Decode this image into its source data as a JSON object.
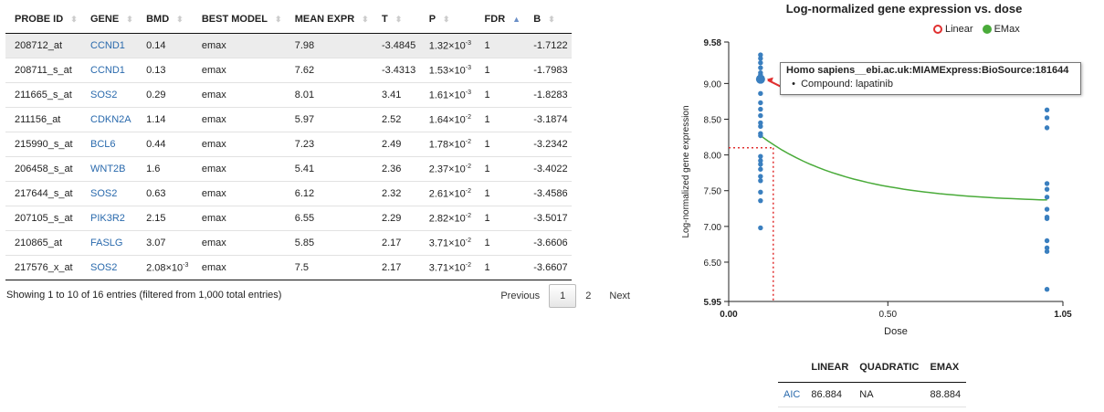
{
  "table": {
    "columns": [
      {
        "label": "PROBE ID",
        "sort": "both"
      },
      {
        "label": "GENE",
        "sort": "both"
      },
      {
        "label": "BMD",
        "sort": "both"
      },
      {
        "label": "BEST MODEL",
        "sort": "both"
      },
      {
        "label": "MEAN EXPR",
        "sort": "both"
      },
      {
        "label": "T",
        "sort": "both"
      },
      {
        "label": "P",
        "sort": "both"
      },
      {
        "label": "FDR",
        "sort": "asc"
      },
      {
        "label": "B",
        "sort": "both"
      }
    ],
    "rows": [
      {
        "probe": "208712_at",
        "gene": "CCND1",
        "bmd": "0.14",
        "model": "emax",
        "mean": "7.98",
        "t": "-3.4845",
        "p_base": "1.32×10",
        "p_exp": "-3",
        "fdr": "1",
        "b": "-1.7122"
      },
      {
        "probe": "208711_s_at",
        "gene": "CCND1",
        "bmd": "0.13",
        "model": "emax",
        "mean": "7.62",
        "t": "-3.4313",
        "p_base": "1.53×10",
        "p_exp": "-3",
        "fdr": "1",
        "b": "-1.7983"
      },
      {
        "probe": "211665_s_at",
        "gene": "SOS2",
        "bmd": "0.29",
        "model": "emax",
        "mean": "8.01",
        "t": "3.41",
        "p_base": "1.61×10",
        "p_exp": "-3",
        "fdr": "1",
        "b": "-1.8283"
      },
      {
        "probe": "211156_at",
        "gene": "CDKN2A",
        "bmd": "1.14",
        "model": "emax",
        "mean": "5.97",
        "t": "2.52",
        "p_base": "1.64×10",
        "p_exp": "-2",
        "fdr": "1",
        "b": "-3.1874"
      },
      {
        "probe": "215990_s_at",
        "gene": "BCL6",
        "bmd": "0.44",
        "model": "emax",
        "mean": "7.23",
        "t": "2.49",
        "p_base": "1.78×10",
        "p_exp": "-2",
        "fdr": "1",
        "b": "-3.2342"
      },
      {
        "probe": "206458_s_at",
        "gene": "WNT2B",
        "bmd": "1.6",
        "model": "emax",
        "mean": "5.41",
        "t": "2.36",
        "p_base": "2.37×10",
        "p_exp": "-2",
        "fdr": "1",
        "b": "-3.4022"
      },
      {
        "probe": "217644_s_at",
        "gene": "SOS2",
        "bmd": "0.63",
        "model": "emax",
        "mean": "6.12",
        "t": "2.32",
        "p_base": "2.61×10",
        "p_exp": "-2",
        "fdr": "1",
        "b": "-3.4586"
      },
      {
        "probe": "207105_s_at",
        "gene": "PIK3R2",
        "bmd": "2.15",
        "model": "emax",
        "mean": "6.55",
        "t": "2.29",
        "p_base": "2.82×10",
        "p_exp": "-2",
        "fdr": "1",
        "b": "-3.5017"
      },
      {
        "probe": "210865_at",
        "gene": "FASLG",
        "bmd": "3.07",
        "model": "emax",
        "mean": "5.85",
        "t": "2.17",
        "p_base": "3.71×10",
        "p_exp": "-2",
        "fdr": "1",
        "b": "-3.6606"
      },
      {
        "probe": "217576_x_at",
        "gene": "SOS2",
        "bmd": "2.08×10",
        "bmd_exp": "-3",
        "model": "emax",
        "mean": "7.5",
        "t": "2.17",
        "p_base": "3.71×10",
        "p_exp": "-2",
        "fdr": "1",
        "b": "-3.6607"
      }
    ]
  },
  "footer": {
    "info": "Showing 1 to 10 of 16 entries (filtered from 1,000 total entries)",
    "previous": "Previous",
    "pages": [
      "1",
      "2"
    ],
    "current_page": "1",
    "next": "Next"
  },
  "colors": {
    "accent": "#2a6aad",
    "points": "#3a7fbf",
    "emax": "#4aab3a",
    "linear": "#e03030",
    "bmd_line": "#e03030"
  },
  "chart_data": {
    "type": "scatter",
    "title": "Log-normalized gene expression vs. dose",
    "xlabel": "Dose",
    "ylabel": "Log-normalized gene expression",
    "xlim": [
      0.0,
      1.05
    ],
    "ylim": [
      5.95,
      9.58
    ],
    "x_ticks": [
      "0.00",
      "0.50",
      "1.05"
    ],
    "y_ticks": [
      "5.95",
      "6.50",
      "7.00",
      "7.50",
      "8.00",
      "8.50",
      "9.00",
      "9.58"
    ],
    "grid": false,
    "legend_placement": "top-right",
    "series": [
      {
        "name": "Linear",
        "visible": false
      },
      {
        "name": "EMax",
        "visible": true
      }
    ],
    "points": [
      {
        "x": 0.1,
        "y": 9.4
      },
      {
        "x": 0.1,
        "y": 9.35
      },
      {
        "x": 0.1,
        "y": 9.29
      },
      {
        "x": 0.1,
        "y": 9.22
      },
      {
        "x": 0.1,
        "y": 9.15
      },
      {
        "x": 0.1,
        "y": 9.12
      },
      {
        "x": 0.1,
        "y": 8.86
      },
      {
        "x": 0.1,
        "y": 8.73
      },
      {
        "x": 0.1,
        "y": 8.64
      },
      {
        "x": 0.1,
        "y": 8.55
      },
      {
        "x": 0.1,
        "y": 8.45
      },
      {
        "x": 0.1,
        "y": 8.4
      },
      {
        "x": 0.1,
        "y": 8.3
      },
      {
        "x": 0.1,
        "y": 8.27
      },
      {
        "x": 0.1,
        "y": 7.98
      },
      {
        "x": 0.1,
        "y": 7.92
      },
      {
        "x": 0.1,
        "y": 7.87
      },
      {
        "x": 0.1,
        "y": 7.8
      },
      {
        "x": 0.1,
        "y": 7.7
      },
      {
        "x": 0.1,
        "y": 7.64
      },
      {
        "x": 0.1,
        "y": 7.48
      },
      {
        "x": 0.1,
        "y": 7.36
      },
      {
        "x": 0.1,
        "y": 6.98
      },
      {
        "x": 1.0,
        "y": 8.63
      },
      {
        "x": 1.0,
        "y": 8.52
      },
      {
        "x": 1.0,
        "y": 8.38
      },
      {
        "x": 1.0,
        "y": 7.6
      },
      {
        "x": 1.0,
        "y": 7.52
      },
      {
        "x": 1.0,
        "y": 7.41
      },
      {
        "x": 1.0,
        "y": 7.24
      },
      {
        "x": 1.0,
        "y": 7.13
      },
      {
        "x": 1.0,
        "y": 7.11
      },
      {
        "x": 1.0,
        "y": 6.8
      },
      {
        "x": 1.0,
        "y": 6.7
      },
      {
        "x": 1.0,
        "y": 6.65
      },
      {
        "x": 1.0,
        "y": 6.12
      }
    ],
    "highlight_point": {
      "x": 0.1,
      "y": 9.06
    },
    "emax_curve": {
      "x_start": 0.1,
      "y_start": 8.27,
      "x_end": 1.0,
      "y_end": 7.37
    },
    "bmd": {
      "x": 0.14,
      "y": 8.1
    },
    "tooltip": {
      "title": "Homo sapiens__ebi.ac.uk:MIAMExpress:BioSource:181644",
      "line": "Compound: lapatinib"
    }
  },
  "aic_table": {
    "headers": [
      "",
      "LINEAR",
      "QUADRATIC",
      "EMAX"
    ],
    "row": {
      "label": "AIC",
      "linear": "86.884",
      "quadratic": "NA",
      "emax": "88.884"
    }
  }
}
